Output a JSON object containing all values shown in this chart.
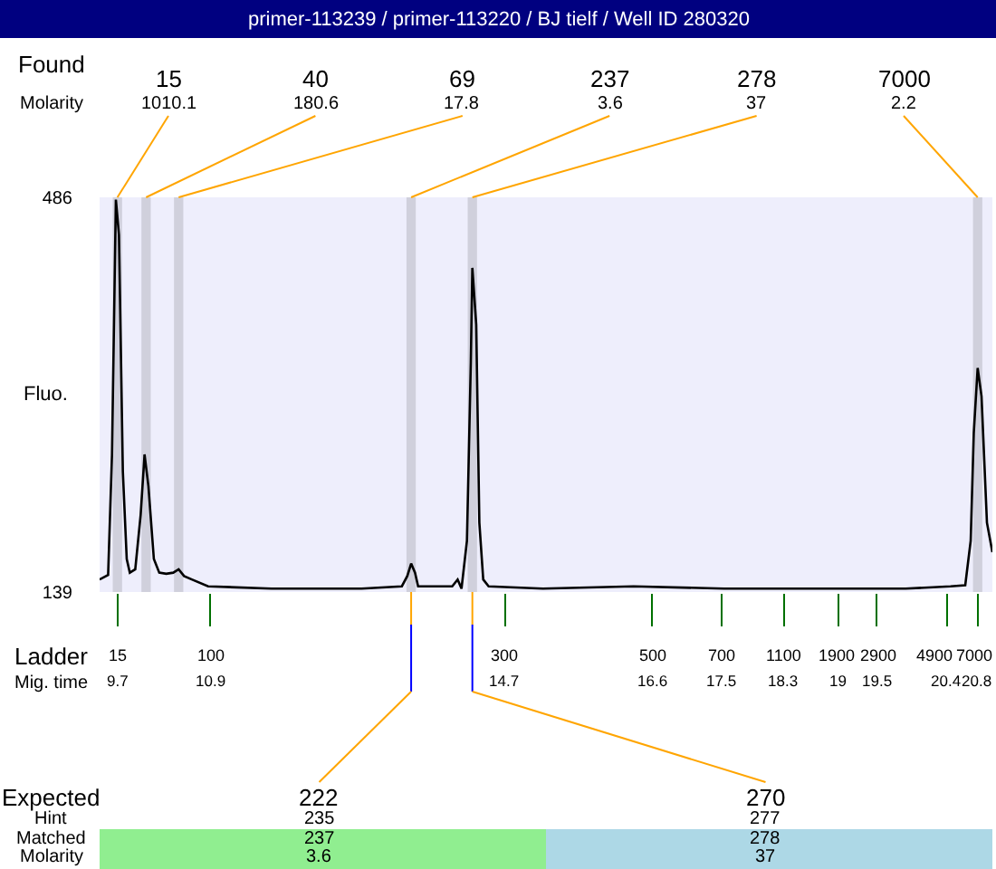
{
  "chart_data": {
    "type": "line",
    "title": "primer-113239 / primer-113220 / BJ tielf / Well ID 280320",
    "ylabel": "Fluo.",
    "x": [
      9.47,
      9.58,
      9.63,
      9.68,
      9.72,
      9.77,
      9.82,
      9.86,
      9.93,
      10.0,
      10.05,
      10.1,
      10.17,
      10.24,
      10.33,
      10.42,
      10.49,
      10.56,
      10.66,
      10.87,
      11.69,
      12.85,
      13.37,
      13.44,
      13.49,
      13.54,
      13.58,
      14.02,
      14.09,
      14.14,
      14.21,
      14.26,
      14.28,
      14.33,
      14.37,
      14.42,
      14.49,
      15.19,
      16.36,
      17.53,
      19.87,
      20.45,
      20.64,
      20.71,
      20.75,
      20.8,
      20.85,
      20.92,
      20.99
    ],
    "series": [
      {
        "color": "#000000",
        "values": [
          150,
          154,
          260,
          484,
          453,
          245,
          168,
          156,
          159,
          207,
          260,
          232,
          168,
          156,
          155,
          156,
          159,
          153,
          150,
          144,
          142,
          142,
          144,
          153,
          164,
          156,
          144,
          144,
          150,
          142,
          184,
          341,
          424,
          374,
          200,
          150,
          144,
          142,
          144,
          142,
          142,
          144,
          145,
          184,
          279,
          336,
          311,
          200,
          174
        ]
      }
    ],
    "xlim": [
      9.47,
      20.99
    ],
    "xticks": [
      9.7,
      10.9,
      14.7,
      16.6,
      17.5,
      18.3,
      19,
      19.5,
      20.4,
      20.8
    ],
    "ylim": [
      139,
      486
    ],
    "yticks": [
      139,
      486
    ],
    "grid": false,
    "legend": false,
    "marker": "none",
    "line_style": "solid",
    "bands": [
      {
        "axis": "x",
        "from": 9.64,
        "to": 9.76,
        "color": "#d0d0dc"
      },
      {
        "axis": "x",
        "from": 10.01,
        "to": 10.13,
        "color": "#d0d0dc"
      },
      {
        "axis": "x",
        "from": 10.43,
        "to": 10.55,
        "color": "#d0d0dc"
      },
      {
        "axis": "x",
        "from": 13.43,
        "to": 13.55,
        "color": "#d0d0dc"
      },
      {
        "axis": "x",
        "from": 14.22,
        "to": 14.34,
        "color": "#d0d0dc"
      },
      {
        "axis": "x",
        "from": 20.74,
        "to": 20.86,
        "color": "#d0d0dc"
      }
    ],
    "annotations": [
      "Found",
      "Molarity",
      "Ladder",
      "Mig. time",
      "Expected",
      "Hint",
      "Matched",
      "Molarity",
      {
        "text": "15\n1010.1",
        "x": 9.7
      },
      {
        "text": "40\n180.6",
        "x": 10.07
      },
      {
        "text": "69\n17.8",
        "x": 10.49
      },
      {
        "text": "237\n3.6",
        "x": 13.49
      },
      {
        "text": "278\n37",
        "x": 14.28
      },
      {
        "text": "7000\n2.2",
        "x": 20.8
      },
      "15",
      "100",
      "300",
      "500",
      "700",
      "1100",
      "1900",
      "2900",
      "4900",
      "7000",
      {
        "text": "222\n235\n237\n3.6",
        "x": 13.49
      },
      {
        "text": "270\n277\n278\n37",
        "x": 14.28
      }
    ]
  }
}
